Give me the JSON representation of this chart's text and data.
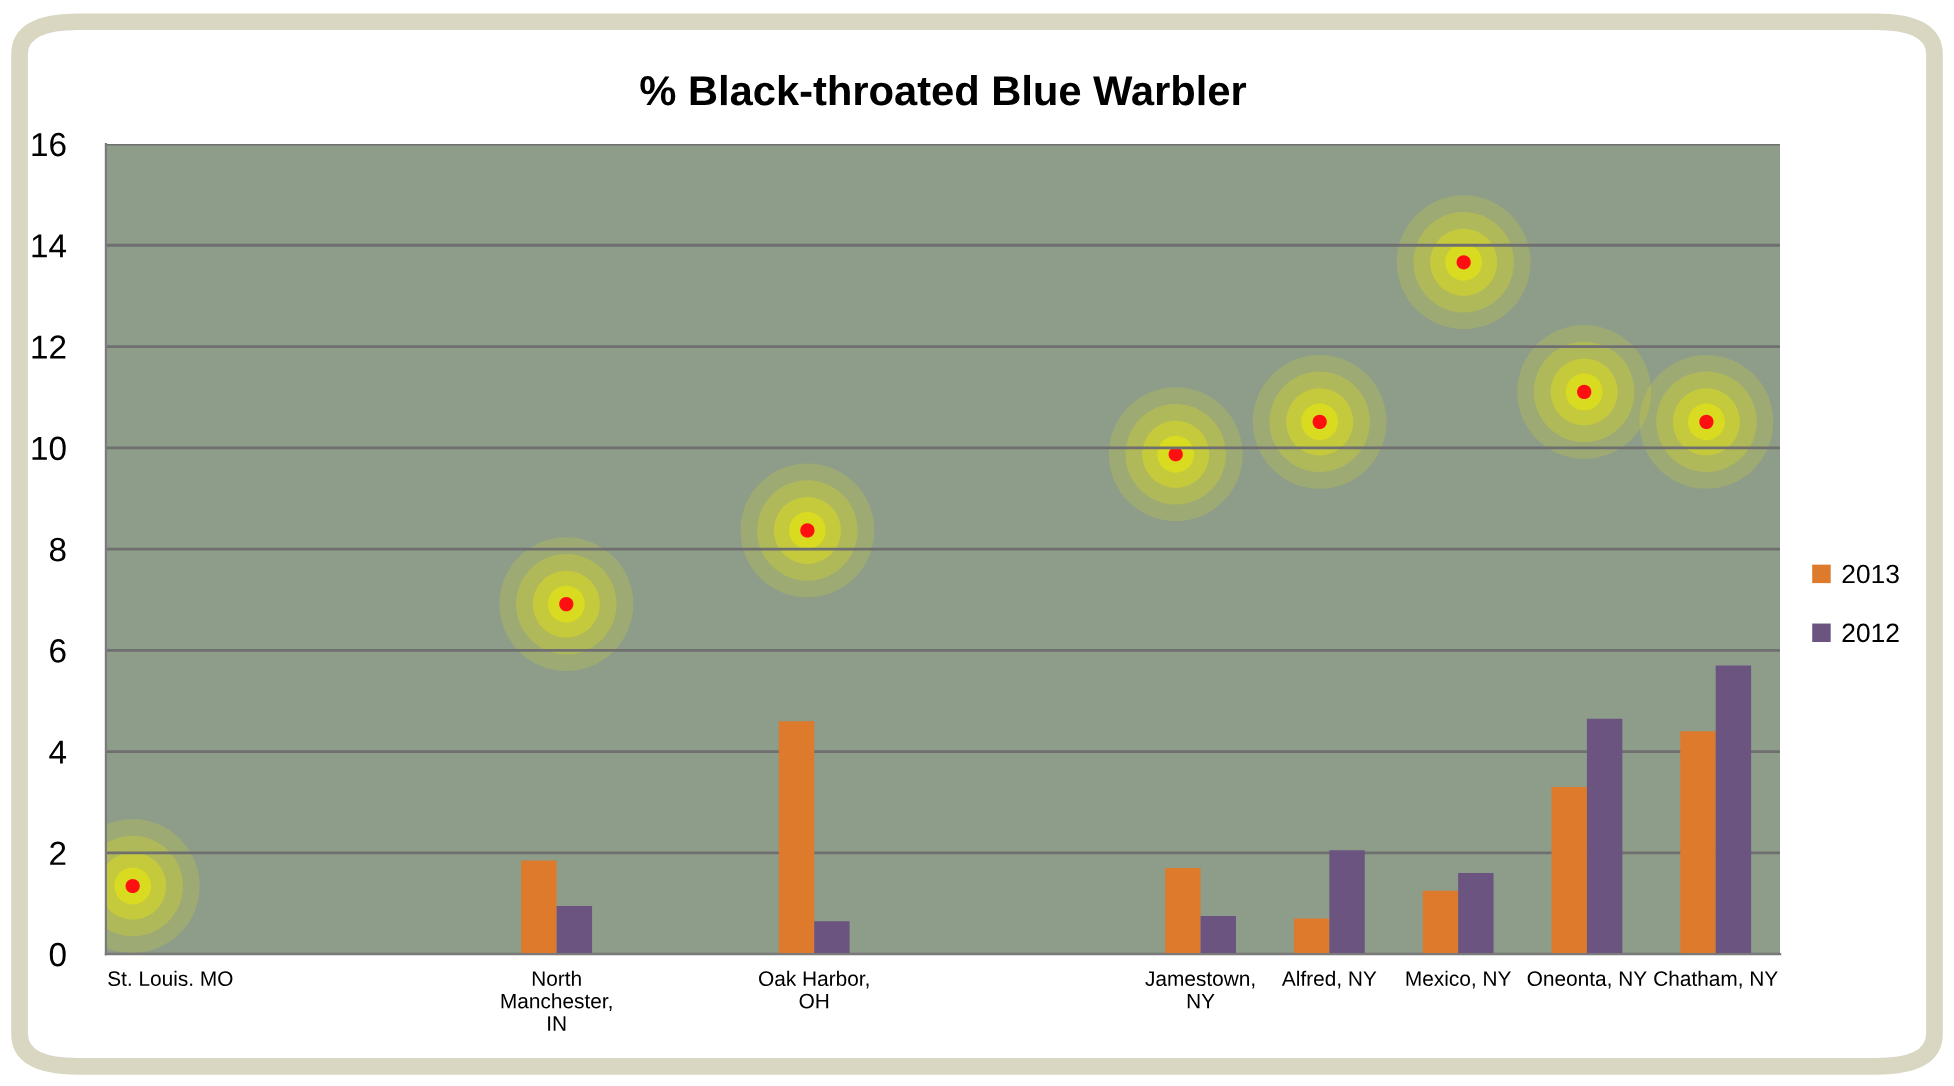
{
  "chart_data": {
    "type": "bar",
    "title": "% Black-throated Blue Warbler",
    "categories": [
      "St. Louis. MO",
      null,
      null,
      "North\nManchester,\nIN",
      null,
      "Oak Harbor,\nOH",
      null,
      null,
      "Jamestown,\nNY",
      "Alfred, NY",
      "Mexico, NY",
      "Oneonta, NY",
      "Chatham, NY"
    ],
    "series": [
      {
        "name": "2013",
        "color": "#dd7a2c",
        "values": [
          null,
          null,
          null,
          1.85,
          null,
          4.6,
          null,
          null,
          1.7,
          0.7,
          1.25,
          3.3,
          4.4
        ]
      },
      {
        "name": "2012",
        "color": "#6b5580",
        "values": [
          null,
          null,
          null,
          0.95,
          null,
          0.65,
          null,
          null,
          0.75,
          2.05,
          1.6,
          4.65,
          5.7
        ]
      }
    ],
    "ylim": [
      0,
      16
    ],
    "yticks": [
      0,
      2,
      4,
      6,
      8,
      10,
      12,
      14,
      16
    ],
    "grid": "y",
    "legend": "right"
  }
}
